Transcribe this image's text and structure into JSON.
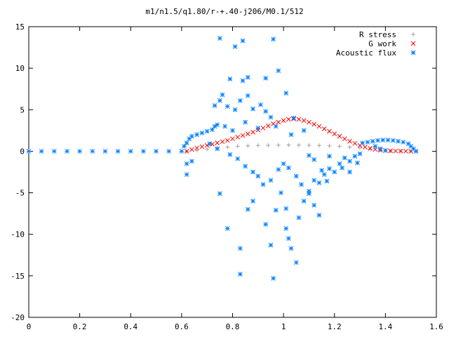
{
  "chart_data": {
    "type": "scatter",
    "title": "m1/n1.5/q1.80/r-+.40-j206/M0.1/512",
    "xlabel": "",
    "ylabel": "",
    "xlim": [
      0,
      1.6
    ],
    "ylim": [
      -20,
      15
    ],
    "x_ticks": [
      "0",
      "0.2",
      "0.4",
      "0.6",
      "0.8",
      "1",
      "1.2",
      "1.4",
      "1.6"
    ],
    "y_ticks": [
      "15",
      "10",
      "5",
      "0",
      "-5",
      "-10",
      "-15",
      "-20"
    ],
    "grid": false,
    "legend_position": "top-right",
    "series": [
      {
        "name": "R stress",
        "marker": "+",
        "color": "#a0a0a0",
        "points": [
          [
            0.62,
            0.0
          ],
          [
            0.66,
            0.1
          ],
          [
            0.7,
            0.25
          ],
          [
            0.74,
            0.4
          ],
          [
            0.78,
            0.5
          ],
          [
            0.82,
            0.6
          ],
          [
            0.86,
            0.65
          ],
          [
            0.9,
            0.7
          ],
          [
            0.94,
            0.72
          ],
          [
            0.98,
            0.74
          ],
          [
            1.02,
            0.75
          ],
          [
            1.06,
            0.74
          ],
          [
            1.1,
            0.72
          ],
          [
            1.14,
            0.7
          ],
          [
            1.18,
            0.65
          ],
          [
            1.22,
            0.6
          ],
          [
            1.26,
            0.5
          ],
          [
            1.3,
            0.4
          ],
          [
            1.34,
            0.25
          ],
          [
            1.38,
            0.12
          ],
          [
            1.42,
            0.05
          ],
          [
            1.46,
            0.02
          ],
          [
            1.5,
            0.0
          ],
          [
            1.52,
            0.0
          ]
        ]
      },
      {
        "name": "G work",
        "marker": "x",
        "color": "#ff0000",
        "points": [
          [
            0.62,
            0.0
          ],
          [
            0.64,
            0.2
          ],
          [
            0.66,
            0.4
          ],
          [
            0.68,
            0.55
          ],
          [
            0.7,
            0.7
          ],
          [
            0.72,
            0.85
          ],
          [
            0.74,
            1.0
          ],
          [
            0.76,
            1.15
          ],
          [
            0.78,
            1.3
          ],
          [
            0.8,
            1.5
          ],
          [
            0.82,
            1.7
          ],
          [
            0.84,
            1.9
          ],
          [
            0.86,
            2.1
          ],
          [
            0.88,
            2.3
          ],
          [
            0.9,
            2.55
          ],
          [
            0.92,
            2.8
          ],
          [
            0.94,
            3.05
          ],
          [
            0.96,
            3.3
          ],
          [
            0.98,
            3.5
          ],
          [
            1.0,
            3.7
          ],
          [
            1.02,
            3.85
          ],
          [
            1.04,
            3.9
          ],
          [
            1.06,
            3.85
          ],
          [
            1.08,
            3.7
          ],
          [
            1.1,
            3.5
          ],
          [
            1.12,
            3.25
          ],
          [
            1.14,
            3.0
          ],
          [
            1.16,
            2.7
          ],
          [
            1.18,
            2.4
          ],
          [
            1.2,
            2.1
          ],
          [
            1.22,
            1.8
          ],
          [
            1.24,
            1.5
          ],
          [
            1.26,
            1.2
          ],
          [
            1.28,
            0.95
          ],
          [
            1.3,
            0.7
          ],
          [
            1.32,
            0.5
          ],
          [
            1.34,
            0.35
          ],
          [
            1.36,
            0.22
          ],
          [
            1.38,
            0.14
          ],
          [
            1.4,
            0.08
          ],
          [
            1.42,
            0.05
          ],
          [
            1.44,
            0.03
          ],
          [
            1.46,
            0.02
          ],
          [
            1.48,
            0.01
          ],
          [
            1.5,
            0.0
          ],
          [
            1.52,
            0.0
          ]
        ]
      },
      {
        "name": "Acoustic flux",
        "marker": "*",
        "color": "#0080ff",
        "points": [
          [
            0.0,
            0.0
          ],
          [
            0.05,
            0.0
          ],
          [
            0.1,
            0.0
          ],
          [
            0.15,
            0.0
          ],
          [
            0.2,
            0.0
          ],
          [
            0.25,
            0.0
          ],
          [
            0.3,
            0.0
          ],
          [
            0.35,
            0.0
          ],
          [
            0.4,
            0.0
          ],
          [
            0.45,
            0.0
          ],
          [
            0.5,
            0.0
          ],
          [
            0.55,
            0.0
          ],
          [
            0.6,
            0.0
          ],
          [
            0.61,
            0.6
          ],
          [
            0.62,
            1.0
          ],
          [
            0.63,
            1.5
          ],
          [
            0.64,
            1.8
          ],
          [
            0.66,
            2.0
          ],
          [
            0.68,
            2.2
          ],
          [
            0.7,
            2.4
          ],
          [
            0.72,
            2.6
          ],
          [
            0.73,
            3.0
          ],
          [
            0.74,
            3.2
          ],
          [
            0.62,
            -1.5
          ],
          [
            0.62,
            -2.8
          ],
          [
            0.64,
            -1.2
          ],
          [
            0.75,
            13.6
          ],
          [
            0.81,
            12.6
          ],
          [
            0.84,
            13.3
          ],
          [
            0.96,
            13.5
          ],
          [
            0.98,
            9.7
          ],
          [
            0.86,
            8.9
          ],
          [
            0.93,
            8.8
          ],
          [
            0.76,
            6.8
          ],
          [
            0.79,
            8.7
          ],
          [
            0.84,
            8.5
          ],
          [
            0.73,
            5.5
          ],
          [
            0.75,
            6.1
          ],
          [
            0.78,
            5.4
          ],
          [
            0.81,
            5.0
          ],
          [
            0.83,
            6.1
          ],
          [
            0.86,
            6.7
          ],
          [
            0.88,
            5.1
          ],
          [
            0.91,
            5.6
          ],
          [
            0.93,
            4.8
          ],
          [
            0.95,
            4.1
          ],
          [
            1.01,
            7.0
          ],
          [
            1.04,
            4.0
          ],
          [
            0.77,
            3.0
          ],
          [
            0.8,
            2.5
          ],
          [
            0.85,
            3.5
          ],
          [
            0.9,
            2.8
          ],
          [
            0.97,
            3.0
          ],
          [
            1.03,
            2.0
          ],
          [
            1.08,
            2.5
          ],
          [
            0.71,
            0.9
          ],
          [
            0.74,
            0.3
          ],
          [
            0.79,
            -0.4
          ],
          [
            0.82,
            -0.9
          ],
          [
            0.85,
            -1.8
          ],
          [
            0.88,
            -2.5
          ],
          [
            0.9,
            -3.0
          ],
          [
            0.92,
            -4.0
          ],
          [
            0.95,
            -3.5
          ],
          [
            0.98,
            -2.2
          ],
          [
            1.0,
            -1.5
          ],
          [
            1.02,
            -2.0
          ],
          [
            1.05,
            -3.0
          ],
          [
            1.07,
            -4.0
          ],
          [
            1.1,
            -4.8
          ],
          [
            1.12,
            -3.5
          ],
          [
            1.14,
            -3.8
          ],
          [
            1.16,
            -2.8
          ],
          [
            1.18,
            -2.1
          ],
          [
            1.2,
            -2.5
          ],
          [
            1.22,
            -1.5
          ],
          [
            1.24,
            -0.8
          ],
          [
            1.26,
            -1.2
          ],
          [
            1.28,
            -0.6
          ],
          [
            1.3,
            -0.3
          ],
          [
            1.15,
            -2.3
          ],
          [
            1.17,
            -3.6
          ],
          [
            1.23,
            -2.0
          ],
          [
            1.26,
            -2.5
          ],
          [
            1.29,
            -1.4
          ],
          [
            1.18,
            -0.6
          ],
          [
            1.12,
            -1.0
          ],
          [
            1.1,
            -0.5
          ],
          [
            0.75,
            -5.1
          ],
          [
            0.78,
            -9.3
          ],
          [
            0.83,
            -11.7
          ],
          [
            0.86,
            -7.0
          ],
          [
            0.88,
            -6.0
          ],
          [
            0.93,
            -8.8
          ],
          [
            0.95,
            -11.3
          ],
          [
            0.99,
            -5.0
          ],
          [
            1.01,
            -9.3
          ],
          [
            1.02,
            -10.5
          ],
          [
            1.03,
            -11.7
          ],
          [
            1.05,
            -13.4
          ],
          [
            1.06,
            -8.0
          ],
          [
            1.08,
            -6.0
          ],
          [
            1.1,
            -5.1
          ],
          [
            1.12,
            -6.5
          ],
          [
            1.14,
            -7.7
          ],
          [
            0.83,
            -14.8
          ],
          [
            0.96,
            -15.3
          ],
          [
            0.97,
            -7.1
          ],
          [
            1.01,
            -6.9
          ],
          [
            1.31,
            1.0
          ],
          [
            1.33,
            1.1
          ],
          [
            1.35,
            1.2
          ],
          [
            1.37,
            1.3
          ],
          [
            1.39,
            1.35
          ],
          [
            1.41,
            1.35
          ],
          [
            1.43,
            1.3
          ],
          [
            1.45,
            1.2
          ],
          [
            1.47,
            1.1
          ],
          [
            1.49,
            0.9
          ],
          [
            1.5,
            0.6
          ],
          [
            1.51,
            0.3
          ],
          [
            1.52,
            0.0
          ],
          [
            1.36,
            0.6
          ],
          [
            1.38,
            0.3
          ],
          [
            1.4,
            0.1
          ]
        ]
      }
    ]
  }
}
